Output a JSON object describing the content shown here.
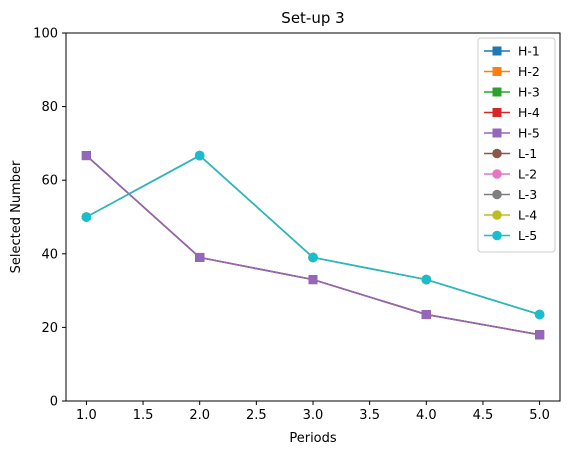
{
  "chart_data": {
    "type": "line",
    "title": "Set-up 3",
    "xlabel": "Periods",
    "ylabel": "Selected Number",
    "xlim": [
      0.82,
      5.18
    ],
    "ylim": [
      0,
      100
    ],
    "xticks": [
      "1.0",
      "1.5",
      "2.0",
      "2.5",
      "3.0",
      "3.5",
      "4.0",
      "4.5",
      "5.0"
    ],
    "yticks": [
      "0",
      "20",
      "40",
      "60",
      "80",
      "100"
    ],
    "x": [
      1,
      2,
      3,
      4,
      5
    ],
    "grid": false,
    "legend_position": "top-right",
    "series": [
      {
        "name": "H-1",
        "color": "#1f77b4",
        "marker": "square",
        "values": [
          66.7,
          39.0,
          33.0,
          23.5,
          18.0
        ]
      },
      {
        "name": "H-2",
        "color": "#ff7f0e",
        "marker": "square",
        "values": [
          66.7,
          39.0,
          33.0,
          23.5,
          18.0
        ]
      },
      {
        "name": "H-3",
        "color": "#2ca02c",
        "marker": "square",
        "values": [
          66.7,
          39.0,
          33.0,
          23.5,
          18.0
        ]
      },
      {
        "name": "H-4",
        "color": "#d62728",
        "marker": "square",
        "values": [
          66.7,
          39.0,
          33.0,
          23.5,
          18.0
        ]
      },
      {
        "name": "H-5",
        "color": "#9467bd",
        "marker": "square",
        "values": [
          66.7,
          39.0,
          33.0,
          23.5,
          18.0
        ]
      },
      {
        "name": "L-1",
        "color": "#8c564b",
        "marker": "circle",
        "values": [
          50.0,
          66.7,
          39.0,
          33.0,
          23.5
        ]
      },
      {
        "name": "L-2",
        "color": "#e377c2",
        "marker": "circle",
        "values": [
          50.0,
          66.7,
          39.0,
          33.0,
          23.5
        ]
      },
      {
        "name": "L-3",
        "color": "#7f7f7f",
        "marker": "circle",
        "values": [
          50.0,
          66.7,
          39.0,
          33.0,
          23.5
        ]
      },
      {
        "name": "L-4",
        "color": "#bcbd22",
        "marker": "circle",
        "values": [
          50.0,
          66.7,
          39.0,
          33.0,
          23.5
        ]
      },
      {
        "name": "L-5",
        "color": "#17becf",
        "marker": "circle",
        "values": [
          50.0,
          66.7,
          39.0,
          33.0,
          23.5
        ]
      }
    ]
  }
}
